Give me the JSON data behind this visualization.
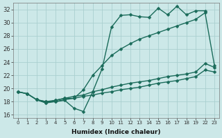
{
  "background_color": "#cce8e8",
  "grid_color": "#aacfcf",
  "line_color": "#1a6b5a",
  "line_width": 1.0,
  "marker": "D",
  "marker_size": 2.5,
  "xlabel": "Humidex (Indice chaleur)",
  "xlim": [
    -0.5,
    23.5
  ],
  "ylim": [
    15.5,
    33.0
  ],
  "yticks": [
    16,
    18,
    20,
    22,
    24,
    26,
    28,
    30,
    32
  ],
  "xtick_labels": [
    "0",
    "1",
    "2",
    "3",
    "4",
    "5",
    "6",
    "7",
    "8",
    "9",
    "10",
    "11",
    "12",
    "13",
    "14",
    "15",
    "16",
    "17",
    "18",
    "19",
    "22",
    "23"
  ],
  "series": [
    {
      "x": [
        0,
        1,
        2,
        3,
        4,
        5,
        6,
        7,
        8,
        9,
        10,
        11,
        12,
        13,
        14,
        15,
        16,
        17,
        18,
        19,
        22
      ],
      "y": [
        19.5,
        19.2,
        18.3,
        18.0,
        18.0,
        18.2,
        17.0,
        16.5,
        19.5,
        23.0,
        29.3,
        31.1,
        31.2,
        30.9,
        30.8,
        32.2,
        31.2,
        32.5,
        31.2,
        31.8,
        31.8
      ]
    },
    {
      "x": [
        2,
        3,
        4,
        5,
        6,
        7,
        8,
        9,
        10,
        11,
        12,
        13,
        14,
        15,
        16,
        17,
        18,
        19,
        22,
        23
      ],
      "y": [
        18.3,
        17.8,
        18.2,
        18.5,
        18.5,
        19.8,
        22.0,
        23.5,
        25.0,
        26.0,
        26.8,
        27.5,
        28.0,
        28.5,
        29.0,
        29.5,
        30.0,
        30.5,
        31.5,
        23.5
      ]
    },
    {
      "x": [
        0,
        1,
        2,
        3,
        4,
        5,
        6,
        7,
        8,
        9,
        10,
        11,
        12,
        13,
        14,
        15,
        16,
        17,
        18,
        19,
        22,
        23
      ],
      "y": [
        19.5,
        19.2,
        18.3,
        18.0,
        18.2,
        18.5,
        18.8,
        19.0,
        19.5,
        19.8,
        20.2,
        20.5,
        20.8,
        21.0,
        21.2,
        21.5,
        21.8,
        22.0,
        22.2,
        22.5,
        23.8,
        23.2
      ]
    },
    {
      "x": [
        0,
        1,
        2,
        3,
        4,
        5,
        6,
        7,
        8,
        9,
        10,
        11,
        12,
        13,
        14,
        15,
        16,
        17,
        18,
        19,
        22,
        23
      ],
      "y": [
        19.5,
        19.2,
        18.3,
        17.8,
        18.0,
        18.3,
        18.5,
        18.8,
        19.0,
        19.3,
        19.5,
        19.8,
        20.0,
        20.2,
        20.5,
        20.8,
        21.0,
        21.2,
        21.5,
        21.8,
        22.8,
        22.5
      ]
    }
  ]
}
